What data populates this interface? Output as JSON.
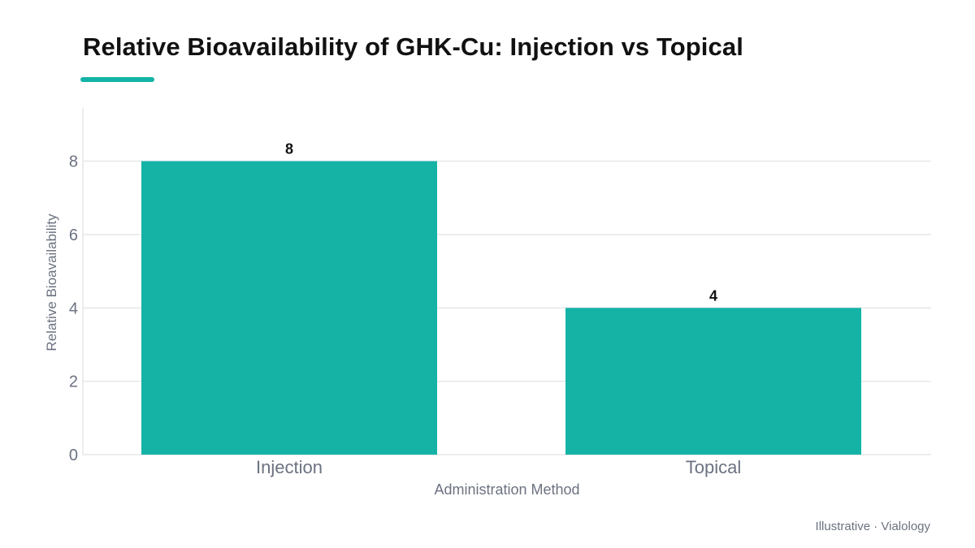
{
  "title": "Relative Bioavailability of GHK-Cu: Injection vs Topical",
  "footer": "Illustrative · Vialology",
  "colors": {
    "accent": "#14b3a6",
    "bar": "#14b3a6",
    "grid": "#e5e7eb",
    "axis_text": "#6b7280",
    "label_text": "#111111"
  },
  "chart_data": {
    "type": "bar",
    "categories": [
      "Injection",
      "Topical"
    ],
    "values": [
      8,
      4
    ],
    "xlabel": "Administration Method",
    "ylabel": "Relative Bioavailability",
    "ylim": [
      0,
      9.45
    ],
    "yticks": [
      0,
      2,
      4,
      6,
      8
    ],
    "grid": true,
    "data_labels": true
  }
}
